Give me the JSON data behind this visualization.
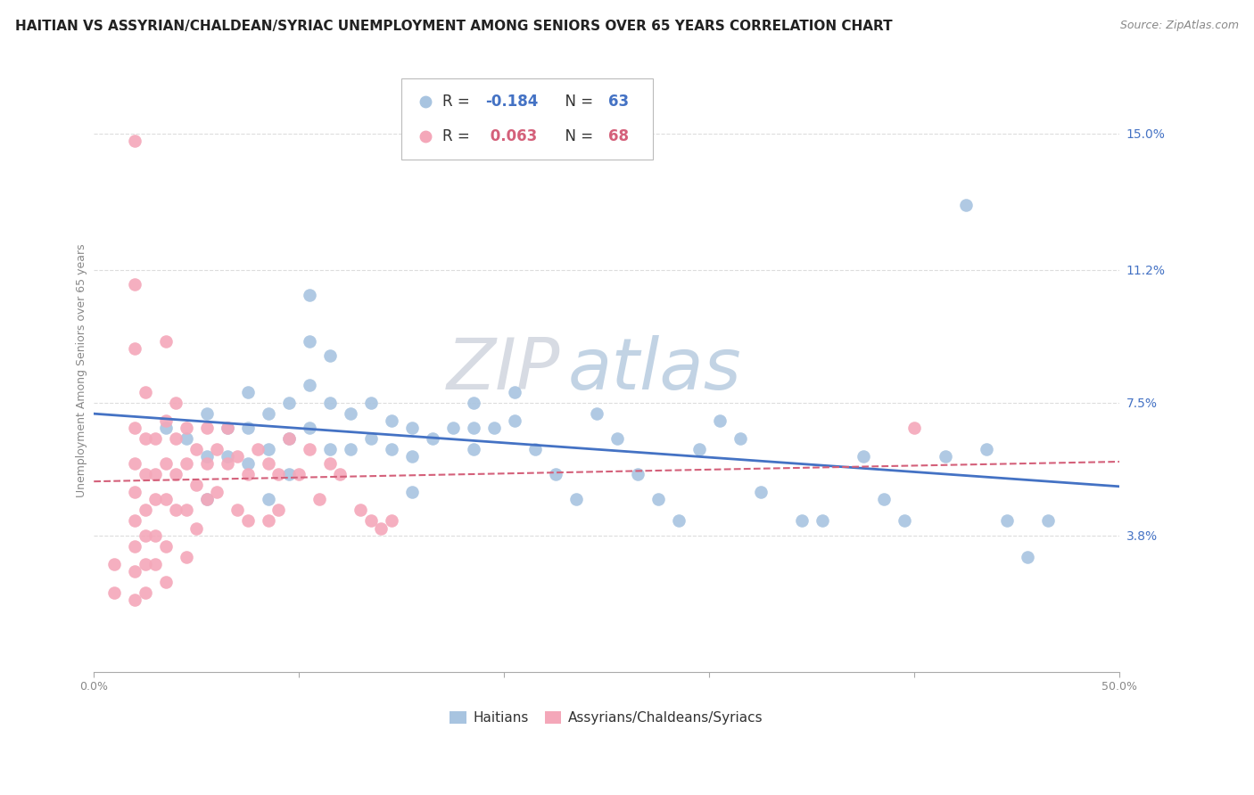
{
  "title": "HAITIAN VS ASSYRIAN/CHALDEAN/SYRIAC UNEMPLOYMENT AMONG SENIORS OVER 65 YEARS CORRELATION CHART",
  "source": "Source: ZipAtlas.com",
  "ylabel": "Unemployment Among Seniors over 65 years",
  "xlim": [
    0.0,
    0.5
  ],
  "ylim": [
    0.0,
    0.168
  ],
  "xticks": [
    0.0,
    0.1,
    0.2,
    0.3,
    0.4,
    0.5
  ],
  "xticklabels": [
    "0.0%",
    "",
    "",
    "",
    "",
    "50.0%"
  ],
  "ytick_right_labels": [
    "15.0%",
    "11.2%",
    "7.5%",
    "3.8%"
  ],
  "ytick_right_values": [
    0.15,
    0.112,
    0.075,
    0.038
  ],
  "blue_R": -0.184,
  "blue_N": 63,
  "pink_R": 0.063,
  "pink_N": 68,
  "blue_color": "#a8c4e0",
  "pink_color": "#f4a7b9",
  "blue_line_color": "#4472c4",
  "pink_line_color": "#d4607a",
  "legend_blue_label": "Haitians",
  "legend_pink_label": "Assyrians/Chaldeans/Syriacs",
  "watermark_zip": "ZIP",
  "watermark_atlas": "atlas",
  "blue_points": [
    [
      0.035,
      0.068
    ],
    [
      0.045,
      0.065
    ],
    [
      0.055,
      0.072
    ],
    [
      0.055,
      0.06
    ],
    [
      0.055,
      0.048
    ],
    [
      0.065,
      0.068
    ],
    [
      0.065,
      0.06
    ],
    [
      0.075,
      0.078
    ],
    [
      0.075,
      0.068
    ],
    [
      0.075,
      0.058
    ],
    [
      0.085,
      0.072
    ],
    [
      0.085,
      0.062
    ],
    [
      0.085,
      0.048
    ],
    [
      0.095,
      0.075
    ],
    [
      0.095,
      0.065
    ],
    [
      0.095,
      0.055
    ],
    [
      0.105,
      0.105
    ],
    [
      0.105,
      0.092
    ],
    [
      0.105,
      0.08
    ],
    [
      0.105,
      0.068
    ],
    [
      0.115,
      0.088
    ],
    [
      0.115,
      0.075
    ],
    [
      0.115,
      0.062
    ],
    [
      0.125,
      0.072
    ],
    [
      0.125,
      0.062
    ],
    [
      0.135,
      0.075
    ],
    [
      0.135,
      0.065
    ],
    [
      0.145,
      0.07
    ],
    [
      0.145,
      0.062
    ],
    [
      0.155,
      0.068
    ],
    [
      0.155,
      0.06
    ],
    [
      0.155,
      0.05
    ],
    [
      0.165,
      0.065
    ],
    [
      0.175,
      0.068
    ],
    [
      0.185,
      0.075
    ],
    [
      0.185,
      0.068
    ],
    [
      0.185,
      0.062
    ],
    [
      0.195,
      0.068
    ],
    [
      0.205,
      0.078
    ],
    [
      0.205,
      0.07
    ],
    [
      0.215,
      0.062
    ],
    [
      0.225,
      0.055
    ],
    [
      0.235,
      0.048
    ],
    [
      0.245,
      0.072
    ],
    [
      0.255,
      0.065
    ],
    [
      0.265,
      0.055
    ],
    [
      0.275,
      0.048
    ],
    [
      0.285,
      0.042
    ],
    [
      0.295,
      0.062
    ],
    [
      0.305,
      0.07
    ],
    [
      0.315,
      0.065
    ],
    [
      0.325,
      0.05
    ],
    [
      0.345,
      0.042
    ],
    [
      0.355,
      0.042
    ],
    [
      0.375,
      0.06
    ],
    [
      0.385,
      0.048
    ],
    [
      0.395,
      0.042
    ],
    [
      0.415,
      0.06
    ],
    [
      0.425,
      0.13
    ],
    [
      0.435,
      0.062
    ],
    [
      0.445,
      0.042
    ],
    [
      0.455,
      0.032
    ],
    [
      0.465,
      0.042
    ]
  ],
  "pink_points": [
    [
      0.01,
      0.03
    ],
    [
      0.01,
      0.022
    ],
    [
      0.02,
      0.148
    ],
    [
      0.02,
      0.108
    ],
    [
      0.02,
      0.09
    ],
    [
      0.02,
      0.068
    ],
    [
      0.02,
      0.058
    ],
    [
      0.02,
      0.05
    ],
    [
      0.02,
      0.042
    ],
    [
      0.02,
      0.035
    ],
    [
      0.02,
      0.028
    ],
    [
      0.02,
      0.02
    ],
    [
      0.025,
      0.078
    ],
    [
      0.025,
      0.065
    ],
    [
      0.025,
      0.055
    ],
    [
      0.025,
      0.045
    ],
    [
      0.025,
      0.038
    ],
    [
      0.025,
      0.03
    ],
    [
      0.025,
      0.022
    ],
    [
      0.03,
      0.065
    ],
    [
      0.03,
      0.055
    ],
    [
      0.03,
      0.048
    ],
    [
      0.03,
      0.038
    ],
    [
      0.03,
      0.03
    ],
    [
      0.035,
      0.092
    ],
    [
      0.035,
      0.07
    ],
    [
      0.035,
      0.058
    ],
    [
      0.035,
      0.048
    ],
    [
      0.035,
      0.035
    ],
    [
      0.035,
      0.025
    ],
    [
      0.04,
      0.075
    ],
    [
      0.04,
      0.065
    ],
    [
      0.04,
      0.055
    ],
    [
      0.04,
      0.045
    ],
    [
      0.045,
      0.068
    ],
    [
      0.045,
      0.058
    ],
    [
      0.045,
      0.045
    ],
    [
      0.045,
      0.032
    ],
    [
      0.05,
      0.062
    ],
    [
      0.05,
      0.052
    ],
    [
      0.05,
      0.04
    ],
    [
      0.055,
      0.068
    ],
    [
      0.055,
      0.058
    ],
    [
      0.055,
      0.048
    ],
    [
      0.06,
      0.062
    ],
    [
      0.06,
      0.05
    ],
    [
      0.065,
      0.068
    ],
    [
      0.065,
      0.058
    ],
    [
      0.07,
      0.06
    ],
    [
      0.07,
      0.045
    ],
    [
      0.075,
      0.055
    ],
    [
      0.075,
      0.042
    ],
    [
      0.08,
      0.062
    ],
    [
      0.085,
      0.058
    ],
    [
      0.085,
      0.042
    ],
    [
      0.09,
      0.055
    ],
    [
      0.09,
      0.045
    ],
    [
      0.095,
      0.065
    ],
    [
      0.1,
      0.055
    ],
    [
      0.105,
      0.062
    ],
    [
      0.11,
      0.048
    ],
    [
      0.115,
      0.058
    ],
    [
      0.12,
      0.055
    ],
    [
      0.13,
      0.045
    ],
    [
      0.135,
      0.042
    ],
    [
      0.14,
      0.04
    ],
    [
      0.145,
      0.042
    ],
    [
      0.4,
      0.068
    ]
  ],
  "background_color": "#ffffff",
  "grid_color": "#dddddd",
  "title_fontsize": 11,
  "source_fontsize": 9,
  "axis_fontsize": 9,
  "legend_fontsize": 12
}
